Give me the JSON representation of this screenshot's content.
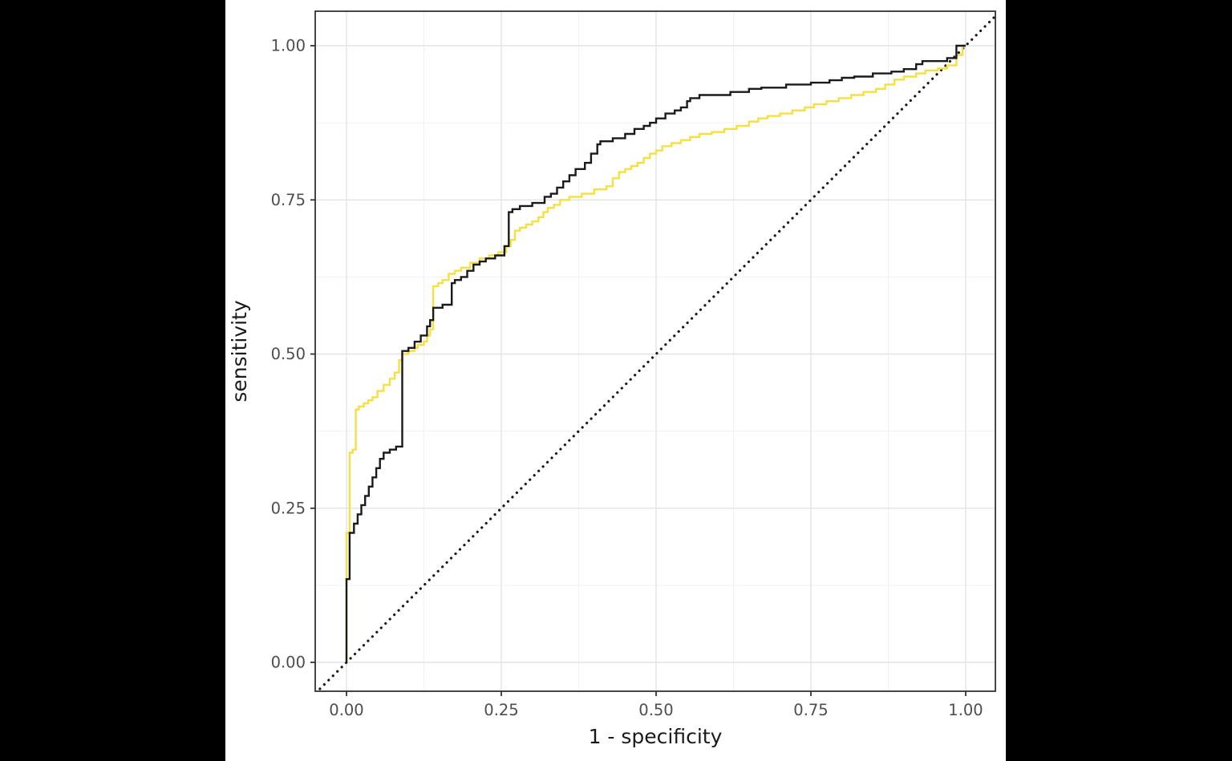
{
  "figure": {
    "background": "#ffffff",
    "letterbox_color": "#000000"
  },
  "panel": {
    "border_color": "#333333",
    "grid_major_color": "#e3e3e3",
    "grid_minor_color": "#f1f1f1",
    "tick_color": "#333333",
    "tick_label_color": "#4d4d4d",
    "title_color": "#1a1a1a"
  },
  "chart_data": {
    "type": "line",
    "subtype": "roc-step-curves",
    "title": "",
    "xlabel": "1 - specificity",
    "ylabel": "sensitivity",
    "xlim": [
      0,
      1
    ],
    "ylim": [
      0,
      1
    ],
    "grid": "major+minor",
    "legend": "none",
    "x_ticks": {
      "values": [
        0,
        0.25,
        0.5,
        0.75,
        1
      ],
      "labels": [
        "0.00",
        "0.25",
        "0.50",
        "0.75",
        "1.00"
      ]
    },
    "y_ticks": {
      "values": [
        0,
        0.25,
        0.5,
        0.75,
        1
      ],
      "labels": [
        "0.00",
        "0.25",
        "0.50",
        "0.75",
        "1.00"
      ]
    },
    "reference_line": {
      "type": "diagonal-dotted",
      "from": [
        0,
        0
      ],
      "to": [
        1,
        1
      ],
      "color": "#1a1a1a"
    },
    "series": [
      {
        "name": "roc-curve-yellow",
        "color": "#f5e042",
        "step": true,
        "points": [
          [
            0,
            0
          ],
          [
            0,
            0.205
          ],
          [
            0.005,
            0.21
          ],
          [
            0.005,
            0.33
          ],
          [
            0.01,
            0.34
          ],
          [
            0.015,
            0.345
          ],
          [
            0.015,
            0.4
          ],
          [
            0.02,
            0.41
          ],
          [
            0.028,
            0.415
          ],
          [
            0.035,
            0.42
          ],
          [
            0.042,
            0.425
          ],
          [
            0.05,
            0.43
          ],
          [
            0.06,
            0.44
          ],
          [
            0.07,
            0.45
          ],
          [
            0.078,
            0.46
          ],
          [
            0.085,
            0.47
          ],
          [
            0.09,
            0.49
          ],
          [
            0.1,
            0.5
          ],
          [
            0.11,
            0.505
          ],
          [
            0.115,
            0.51
          ],
          [
            0.125,
            0.515
          ],
          [
            0.13,
            0.52
          ],
          [
            0.135,
            0.53
          ],
          [
            0.14,
            0.54
          ],
          [
            0.14,
            0.6
          ],
          [
            0.148,
            0.61
          ],
          [
            0.155,
            0.615
          ],
          [
            0.165,
            0.62
          ],
          [
            0.175,
            0.63
          ],
          [
            0.185,
            0.635
          ],
          [
            0.2,
            0.64
          ],
          [
            0.215,
            0.648
          ],
          [
            0.23,
            0.655
          ],
          [
            0.245,
            0.66
          ],
          [
            0.258,
            0.665
          ],
          [
            0.265,
            0.675
          ],
          [
            0.272,
            0.685
          ],
          [
            0.28,
            0.7
          ],
          [
            0.29,
            0.705
          ],
          [
            0.3,
            0.71
          ],
          [
            0.31,
            0.715
          ],
          [
            0.318,
            0.722
          ],
          [
            0.325,
            0.73
          ],
          [
            0.335,
            0.737
          ],
          [
            0.345,
            0.742
          ],
          [
            0.36,
            0.75
          ],
          [
            0.38,
            0.755
          ],
          [
            0.4,
            0.76
          ],
          [
            0.42,
            0.767
          ],
          [
            0.43,
            0.772
          ],
          [
            0.44,
            0.785
          ],
          [
            0.45,
            0.795
          ],
          [
            0.46,
            0.8
          ],
          [
            0.47,
            0.805
          ],
          [
            0.48,
            0.81
          ],
          [
            0.49,
            0.818
          ],
          [
            0.5,
            0.825
          ],
          [
            0.51,
            0.83
          ],
          [
            0.525,
            0.837
          ],
          [
            0.54,
            0.842
          ],
          [
            0.555,
            0.847
          ],
          [
            0.57,
            0.852
          ],
          [
            0.59,
            0.857
          ],
          [
            0.61,
            0.86
          ],
          [
            0.63,
            0.865
          ],
          [
            0.65,
            0.87
          ],
          [
            0.665,
            0.877
          ],
          [
            0.68,
            0.882
          ],
          [
            0.7,
            0.886
          ],
          [
            0.72,
            0.89
          ],
          [
            0.74,
            0.895
          ],
          [
            0.755,
            0.9
          ],
          [
            0.775,
            0.905
          ],
          [
            0.795,
            0.91
          ],
          [
            0.815,
            0.915
          ],
          [
            0.835,
            0.92
          ],
          [
            0.855,
            0.925
          ],
          [
            0.87,
            0.93
          ],
          [
            0.885,
            0.937
          ],
          [
            0.9,
            0.945
          ],
          [
            0.92,
            0.95
          ],
          [
            0.935,
            0.955
          ],
          [
            0.955,
            0.96
          ],
          [
            0.97,
            0.963
          ],
          [
            0.985,
            0.968
          ],
          [
            0.995,
            0.985
          ],
          [
            1,
            1
          ]
        ]
      },
      {
        "name": "roc-curve-black",
        "color": "#1a1a1a",
        "step": true,
        "points": [
          [
            0,
            0
          ],
          [
            0,
            0.065
          ],
          [
            0.005,
            0.135
          ],
          [
            0.005,
            0.2
          ],
          [
            0.012,
            0.21
          ],
          [
            0.018,
            0.225
          ],
          [
            0.024,
            0.24
          ],
          [
            0.03,
            0.255
          ],
          [
            0.036,
            0.27
          ],
          [
            0.042,
            0.285
          ],
          [
            0.048,
            0.3
          ],
          [
            0.054,
            0.315
          ],
          [
            0.06,
            0.33
          ],
          [
            0.07,
            0.34
          ],
          [
            0.08,
            0.345
          ],
          [
            0.09,
            0.35
          ],
          [
            0.09,
            0.5
          ],
          [
            0.1,
            0.505
          ],
          [
            0.11,
            0.51
          ],
          [
            0.12,
            0.52
          ],
          [
            0.13,
            0.53
          ],
          [
            0.135,
            0.545
          ],
          [
            0.14,
            0.555
          ],
          [
            0.14,
            0.57
          ],
          [
            0.155,
            0.575
          ],
          [
            0.17,
            0.58
          ],
          [
            0.175,
            0.615
          ],
          [
            0.185,
            0.62
          ],
          [
            0.195,
            0.625
          ],
          [
            0.205,
            0.635
          ],
          [
            0.215,
            0.645
          ],
          [
            0.225,
            0.65
          ],
          [
            0.24,
            0.655
          ],
          [
            0.255,
            0.66
          ],
          [
            0.262,
            0.675
          ],
          [
            0.268,
            0.73
          ],
          [
            0.28,
            0.735
          ],
          [
            0.3,
            0.74
          ],
          [
            0.32,
            0.745
          ],
          [
            0.33,
            0.755
          ],
          [
            0.34,
            0.76
          ],
          [
            0.35,
            0.77
          ],
          [
            0.36,
            0.78
          ],
          [
            0.37,
            0.79
          ],
          [
            0.385,
            0.8
          ],
          [
            0.395,
            0.81
          ],
          [
            0.405,
            0.825
          ],
          [
            0.41,
            0.84
          ],
          [
            0.43,
            0.845
          ],
          [
            0.45,
            0.85
          ],
          [
            0.465,
            0.857
          ],
          [
            0.48,
            0.865
          ],
          [
            0.49,
            0.87
          ],
          [
            0.5,
            0.875
          ],
          [
            0.515,
            0.882
          ],
          [
            0.53,
            0.89
          ],
          [
            0.54,
            0.895
          ],
          [
            0.55,
            0.9
          ],
          [
            0.555,
            0.91
          ],
          [
            0.57,
            0.915
          ],
          [
            0.585,
            0.92
          ],
          [
            0.62,
            0.92
          ],
          [
            0.65,
            0.925
          ],
          [
            0.67,
            0.93
          ],
          [
            0.71,
            0.932
          ],
          [
            0.75,
            0.937
          ],
          [
            0.78,
            0.94
          ],
          [
            0.8,
            0.944
          ],
          [
            0.82,
            0.948
          ],
          [
            0.85,
            0.95
          ],
          [
            0.88,
            0.955
          ],
          [
            0.9,
            0.958
          ],
          [
            0.92,
            0.962
          ],
          [
            0.93,
            0.97
          ],
          [
            0.945,
            0.975
          ],
          [
            0.97,
            0.975
          ],
          [
            0.985,
            0.98
          ],
          [
            1,
            1
          ]
        ]
      }
    ]
  }
}
